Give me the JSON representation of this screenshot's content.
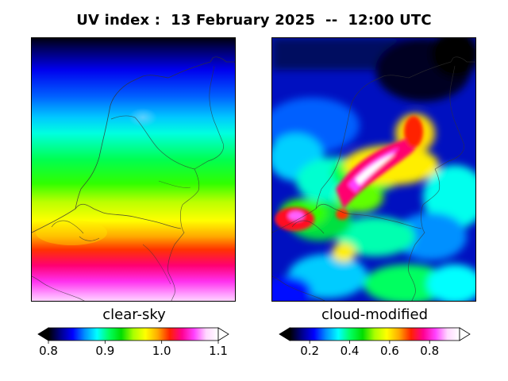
{
  "title": "UV index :  13 February 2025  --  12:00 UTC",
  "panels": [
    {
      "label": "clear-sky",
      "colorbar": {
        "min": 0.8,
        "max": 1.1,
        "ticks": [
          "0.8",
          "0.9",
          "1.0",
          "1.1"
        ],
        "tick_values": [
          0.8,
          0.9,
          1.0,
          1.1
        ],
        "extend": "both"
      }
    },
    {
      "label": "cloud-modified",
      "colorbar": {
        "min": 0.1,
        "max": 0.95,
        "ticks": [
          "0.2",
          "0.4",
          "0.6",
          "0.8"
        ],
        "tick_values": [
          0.2,
          0.4,
          0.6,
          0.8
        ],
        "extend": "both"
      }
    }
  ],
  "colormap": {
    "name": "gist_ncar-like",
    "stops": [
      "#000000",
      "#000088",
      "#0000ff",
      "#0090ff",
      "#00ffff",
      "#00ff60",
      "#00dd00",
      "#aaff00",
      "#ffff00",
      "#ffaa00",
      "#ff2200",
      "#ff0090",
      "#ff40ff",
      "#ffd8ff",
      "#ffffff"
    ]
  }
}
